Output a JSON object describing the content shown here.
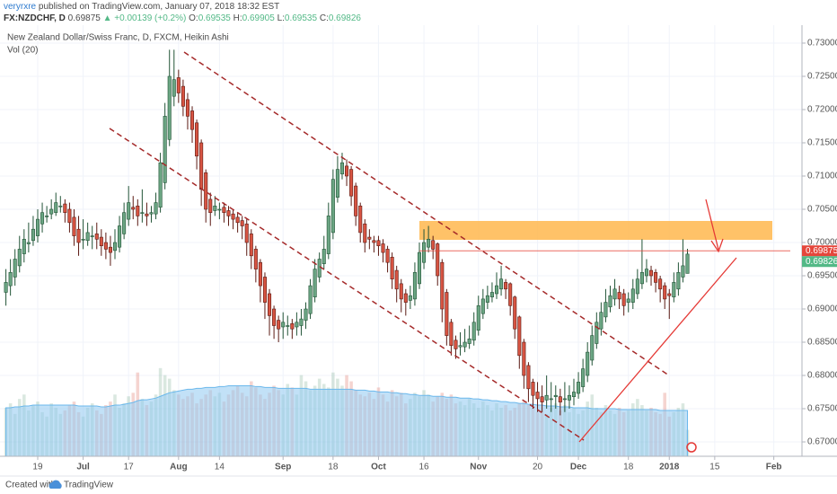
{
  "header": {
    "author": "veryrxre",
    "published": "published on TradingView.com, January 07, 2018 18:32 EST",
    "symbol": "FX:NZDCHF, D",
    "price": "0.69875",
    "change": "▲ +0.00139 (+0.2%)",
    "ohlc": [
      {
        "label": "O:",
        "value": "0.69535"
      },
      {
        "label": "H:",
        "value": "0.69905"
      },
      {
        "label": "L:",
        "value": "0.69535"
      },
      {
        "label": "C:",
        "value": "0.69826"
      }
    ]
  },
  "footer": {
    "created": "Created with",
    "brand": "TradingView"
  },
  "chart_data": {
    "type": "candlestick",
    "title": "New Zealand Dollar/Swiss Franc, D, FXCM, Heikin Ashi",
    "volume_label": "Vol (20)",
    "up_color": "#6ba583",
    "down_color": "#d75442",
    "up_border": "#225437",
    "down_border": "#5b1a13",
    "open": [
      0.6925,
      0.6935,
      0.6948,
      0.6965,
      0.6983,
      0.6998,
      0.7003,
      0.701,
      0.7028,
      0.704,
      0.7043,
      0.7045,
      0.7055,
      0.7058,
      0.705,
      0.7038,
      0.702,
      0.7005,
      0.7003,
      0.701,
      0.7013,
      0.7008,
      0.7,
      0.6993,
      0.6988,
      0.6993,
      0.7013,
      0.7035,
      0.7053,
      0.7055,
      0.7045,
      0.7043,
      0.7043,
      0.7043,
      0.7053,
      0.709,
      0.7155,
      0.722,
      0.7248,
      0.7235,
      0.7215,
      0.7198,
      0.718,
      0.715,
      0.7105,
      0.7065,
      0.7048,
      0.705,
      0.7053,
      0.7048,
      0.7043,
      0.7038,
      0.7033,
      0.7028,
      0.7013,
      0.699,
      0.697,
      0.6948,
      0.6923,
      0.69,
      0.6883,
      0.6873,
      0.6875,
      0.6878,
      0.6873,
      0.6875,
      0.6883,
      0.6893,
      0.6918,
      0.6948,
      0.6968,
      0.6983,
      0.7015,
      0.7068,
      0.7103,
      0.7115,
      0.711,
      0.7085,
      0.7055,
      0.7028,
      0.7008,
      0.7003,
      0.7003,
      0.6998,
      0.699,
      0.6978,
      0.6958,
      0.6938,
      0.6923,
      0.6913,
      0.6915,
      0.6938,
      0.697,
      0.6993,
      0.7003,
      0.6998,
      0.697,
      0.6925,
      0.688,
      0.6853,
      0.6843,
      0.6843,
      0.6848,
      0.6853,
      0.6868,
      0.6893,
      0.691,
      0.6918,
      0.6923,
      0.693,
      0.694,
      0.6938,
      0.6918,
      0.6888,
      0.685,
      0.6815,
      0.679,
      0.6775,
      0.6768,
      0.6763,
      0.6765,
      0.6768,
      0.6768,
      0.6765,
      0.6763,
      0.6768,
      0.6773,
      0.6783,
      0.68,
      0.6823,
      0.6848,
      0.687,
      0.6888,
      0.6903,
      0.6915,
      0.6925,
      0.6923,
      0.691,
      0.691,
      0.6923,
      0.6938,
      0.695,
      0.6958,
      0.6955,
      0.6945,
      0.6935,
      0.6923,
      0.6918,
      0.693,
      0.6948,
      0.69535
    ],
    "high": [
      0.696,
      0.6975,
      0.699,
      0.701,
      0.702,
      0.703,
      0.704,
      0.705,
      0.706,
      0.7055,
      0.7065,
      0.7075,
      0.707,
      0.7065,
      0.706,
      0.705,
      0.704,
      0.7035,
      0.703,
      0.7025,
      0.703,
      0.702,
      0.7015,
      0.701,
      0.702,
      0.704,
      0.706,
      0.7085,
      0.707,
      0.7065,
      0.708,
      0.706,
      0.7055,
      0.7075,
      0.7135,
      0.721,
      0.729,
      0.729,
      0.726,
      0.7245,
      0.7225,
      0.7205,
      0.7185,
      0.7155,
      0.711,
      0.7075,
      0.707,
      0.706,
      0.706,
      0.7055,
      0.705,
      0.7045,
      0.704,
      0.7035,
      0.702,
      0.6995,
      0.6975,
      0.6955,
      0.693,
      0.6905,
      0.689,
      0.6895,
      0.689,
      0.6885,
      0.6895,
      0.69,
      0.691,
      0.6945,
      0.6975,
      0.6985,
      0.701,
      0.706,
      0.711,
      0.713,
      0.7135,
      0.7125,
      0.7115,
      0.709,
      0.706,
      0.7035,
      0.702,
      0.701,
      0.701,
      0.7005,
      0.6995,
      0.6985,
      0.6965,
      0.6945,
      0.693,
      0.6935,
      0.697,
      0.7,
      0.702,
      0.7025,
      0.701,
      0.7,
      0.6975,
      0.693,
      0.6885,
      0.686,
      0.6865,
      0.687,
      0.6875,
      0.6895,
      0.692,
      0.693,
      0.6935,
      0.694,
      0.6955,
      0.6965,
      0.6945,
      0.694,
      0.692,
      0.689,
      0.6855,
      0.682,
      0.6795,
      0.679,
      0.6785,
      0.68,
      0.679,
      0.6785,
      0.678,
      0.679,
      0.6785,
      0.6795,
      0.6805,
      0.6825,
      0.685,
      0.6875,
      0.6895,
      0.691,
      0.693,
      0.6935,
      0.6945,
      0.6935,
      0.693,
      0.6925,
      0.6945,
      0.696,
      0.7005,
      0.6975,
      0.6965,
      0.696,
      0.695,
      0.694,
      0.693,
      0.6955,
      0.697,
      0.7005,
      0.69905
    ],
    "low": [
      0.6905,
      0.692,
      0.6935,
      0.6955,
      0.697,
      0.6985,
      0.6995,
      0.7,
      0.7015,
      0.703,
      0.7035,
      0.704,
      0.7045,
      0.703,
      0.7015,
      0.6995,
      0.698,
      0.699,
      0.6995,
      0.699,
      0.699,
      0.698,
      0.6975,
      0.6965,
      0.6975,
      0.6985,
      0.7005,
      0.7025,
      0.7035,
      0.7025,
      0.703,
      0.7025,
      0.703,
      0.7035,
      0.7045,
      0.708,
      0.7145,
      0.7205,
      0.721,
      0.719,
      0.717,
      0.715,
      0.711,
      0.7055,
      0.703,
      0.7025,
      0.704,
      0.7035,
      0.703,
      0.7025,
      0.702,
      0.7015,
      0.7005,
      0.698,
      0.696,
      0.694,
      0.691,
      0.6885,
      0.686,
      0.6855,
      0.685,
      0.6855,
      0.686,
      0.6855,
      0.686,
      0.686,
      0.687,
      0.6885,
      0.691,
      0.694,
      0.696,
      0.6975,
      0.7005,
      0.706,
      0.7095,
      0.7085,
      0.7055,
      0.7025,
      0.7,
      0.6985,
      0.699,
      0.6985,
      0.698,
      0.697,
      0.6955,
      0.693,
      0.691,
      0.6895,
      0.689,
      0.69,
      0.6905,
      0.693,
      0.696,
      0.6985,
      0.6975,
      0.6935,
      0.688,
      0.6845,
      0.683,
      0.6825,
      0.683,
      0.6835,
      0.684,
      0.6845,
      0.686,
      0.6885,
      0.69,
      0.691,
      0.6915,
      0.692,
      0.6915,
      0.689,
      0.6855,
      0.681,
      0.678,
      0.676,
      0.675,
      0.6745,
      0.6745,
      0.675,
      0.6745,
      0.675,
      0.674,
      0.6745,
      0.675,
      0.6755,
      0.6765,
      0.6775,
      0.679,
      0.6815,
      0.684,
      0.686,
      0.688,
      0.6895,
      0.6905,
      0.69,
      0.689,
      0.6895,
      0.69,
      0.6915,
      0.693,
      0.694,
      0.6935,
      0.6925,
      0.691,
      0.69,
      0.6885,
      0.691,
      0.692,
      0.694,
      0.69535
    ],
    "close": [
      0.694,
      0.6955,
      0.6975,
      0.699,
      0.7005,
      0.7,
      0.702,
      0.7035,
      0.7045,
      0.704,
      0.705,
      0.706,
      0.7055,
      0.7045,
      0.703,
      0.701,
      0.7,
      0.7005,
      0.7015,
      0.701,
      0.7005,
      0.6995,
      0.699,
      0.6985,
      0.7,
      0.7025,
      0.7045,
      0.706,
      0.705,
      0.704,
      0.7045,
      0.704,
      0.7045,
      0.706,
      0.712,
      0.719,
      0.725,
      0.7245,
      0.7225,
      0.7205,
      0.719,
      0.717,
      0.713,
      0.708,
      0.705,
      0.7045,
      0.7055,
      0.705,
      0.7045,
      0.704,
      0.7035,
      0.703,
      0.7025,
      0.7,
      0.698,
      0.696,
      0.6935,
      0.691,
      0.689,
      0.6875,
      0.687,
      0.688,
      0.6875,
      0.687,
      0.688,
      0.6885,
      0.69,
      0.6935,
      0.696,
      0.6975,
      0.699,
      0.704,
      0.7095,
      0.711,
      0.712,
      0.71,
      0.707,
      0.704,
      0.7015,
      0.7,
      0.7005,
      0.7,
      0.6995,
      0.6985,
      0.697,
      0.6945,
      0.693,
      0.6915,
      0.691,
      0.692,
      0.6955,
      0.6985,
      0.7,
      0.7005,
      0.699,
      0.695,
      0.69,
      0.686,
      0.6845,
      0.684,
      0.6845,
      0.685,
      0.6855,
      0.688,
      0.6905,
      0.6915,
      0.692,
      0.6925,
      0.6935,
      0.6945,
      0.693,
      0.6905,
      0.687,
      0.683,
      0.68,
      0.678,
      0.677,
      0.6765,
      0.676,
      0.677,
      0.6765,
      0.677,
      0.676,
      0.6765,
      0.677,
      0.6775,
      0.679,
      0.681,
      0.6835,
      0.686,
      0.688,
      0.6895,
      0.691,
      0.692,
      0.693,
      0.6915,
      0.6905,
      0.6915,
      0.693,
      0.6945,
      0.6955,
      0.696,
      0.695,
      0.694,
      0.693,
      0.6915,
      0.692,
      0.694,
      0.6955,
      0.6965,
      0.69826
    ],
    "volume": {
      "ylim": [
        0,
        110
      ],
      "up_color": "#6ba583",
      "down_color": "#d75442",
      "values": [
        55,
        60,
        48,
        65,
        70,
        52,
        58,
        62,
        50,
        45,
        60,
        55,
        48,
        52,
        58,
        62,
        50,
        45,
        55,
        60,
        52,
        48,
        58,
        62,
        70,
        55,
        60,
        68,
        72,
        95,
        65,
        58,
        62,
        70,
        100,
        92,
        88,
        75,
        70,
        65,
        68,
        72,
        60,
        65,
        70,
        75,
        68,
        72,
        62,
        70,
        75,
        80,
        72,
        68,
        85,
        78,
        70,
        65,
        72,
        80,
        75,
        70,
        82,
        78,
        70,
        92,
        85,
        75,
        80,
        88,
        82,
        78,
        95,
        88,
        80,
        92,
        85,
        75,
        70,
        68,
        72,
        65,
        78,
        70,
        62,
        75,
        68,
        72,
        60,
        65,
        72,
        68,
        75,
        70,
        62,
        68,
        72,
        65,
        70,
        60,
        62,
        58,
        65,
        60,
        55,
        62,
        58,
        52,
        60,
        55,
        58,
        52,
        55,
        60,
        62,
        58,
        55,
        50,
        52,
        48,
        55,
        60,
        52,
        58,
        50,
        55,
        48,
        52,
        62,
        70,
        55,
        50,
        58,
        52,
        48,
        55,
        50,
        52,
        60,
        65,
        58,
        52,
        55,
        50,
        48,
        72,
        45,
        50,
        55,
        60,
        30
      ]
    },
    "volume_ma": {
      "color": "#8fc9f0",
      "values": [
        55,
        55,
        56,
        56,
        57,
        57,
        58,
        58,
        58,
        58,
        58,
        58,
        58,
        58,
        58,
        58,
        57,
        57,
        57,
        57,
        57,
        56,
        56,
        57,
        58,
        58,
        59,
        60,
        61,
        63,
        64,
        64,
        65,
        66,
        68,
        70,
        72,
        73,
        74,
        75,
        76,
        76,
        77,
        77,
        78,
        78,
        78,
        79,
        79,
        80,
        80,
        80,
        80,
        80,
        80,
        79,
        79,
        78,
        78,
        78,
        77,
        77,
        77,
        77,
        77,
        77,
        77,
        76,
        76,
        76,
        76,
        76,
        76,
        76,
        76,
        76,
        76,
        75,
        75,
        75,
        74,
        74,
        73,
        73,
        73,
        72,
        72,
        71,
        71,
        70,
        70,
        69,
        69,
        69,
        68,
        68,
        68,
        67,
        67,
        67,
        66,
        66,
        66,
        65,
        65,
        64,
        64,
        63,
        63,
        62,
        62,
        61,
        61,
        60,
        60,
        59,
        59,
        58,
        58,
        57,
        57,
        57,
        56,
        56,
        56,
        55,
        55,
        55,
        55,
        54,
        54,
        54,
        54,
        54,
        54,
        53,
        53,
        53,
        53,
        53,
        53,
        53,
        53,
        53,
        52,
        52,
        52,
        52,
        52,
        52,
        52
      ]
    },
    "ylim": [
      0.66784,
      0.7327
    ],
    "yticks": [
      {
        "value": 0.67,
        "label": "0.67000"
      },
      {
        "value": 0.675,
        "label": "0.67500"
      },
      {
        "value": 0.68,
        "label": "0.68000"
      },
      {
        "value": 0.685,
        "label": "0.68500"
      },
      {
        "value": 0.69,
        "label": "0.69000"
      },
      {
        "value": 0.695,
        "label": "0.69500"
      },
      {
        "value": 0.7,
        "label": "0.70000"
      },
      {
        "value": 0.705,
        "label": "0.70500"
      },
      {
        "value": 0.71,
        "label": "0.71000"
      },
      {
        "value": 0.715,
        "label": "0.71500"
      },
      {
        "value": 0.72,
        "label": "0.72000"
      },
      {
        "value": 0.725,
        "label": "0.72500"
      },
      {
        "value": 0.73,
        "label": "0.73000"
      }
    ],
    "xlim": [
      -1.3,
      175.2
    ],
    "xticks": [
      {
        "value": 7,
        "label": "19"
      },
      {
        "value": 17,
        "label": "Jul"
      },
      {
        "value": 27,
        "label": "17"
      },
      {
        "value": 38,
        "label": "Aug"
      },
      {
        "value": 47,
        "label": "14"
      },
      {
        "value": 61,
        "label": "Sep"
      },
      {
        "value": 72,
        "label": "18"
      },
      {
        "value": 82,
        "label": "Oct"
      },
      {
        "value": 92,
        "label": "16"
      },
      {
        "value": 104,
        "label": "Nov"
      },
      {
        "value": 117,
        "label": "20"
      },
      {
        "value": 126,
        "label": "Dec"
      },
      {
        "value": 137,
        "label": "18"
      },
      {
        "value": 146,
        "label": "2018"
      },
      {
        "value": 156,
        "label": "15"
      },
      {
        "value": 169,
        "label": "Feb"
      }
    ],
    "grid": true,
    "last_price": {
      "value": 0.69875,
      "label": "0.69875",
      "color": "#e5463b"
    },
    "last_close": {
      "value": 0.69826,
      "label": "0.69826",
      "color": "#53b987"
    }
  }
}
